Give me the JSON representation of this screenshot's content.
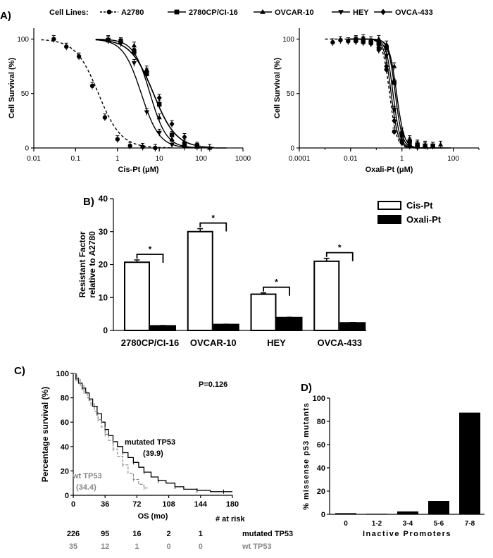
{
  "figure": {
    "panel_labels": [
      "A)",
      "B)",
      "C)",
      "D)"
    ]
  },
  "chart_data": [
    {
      "panel": "A-left",
      "type": "line",
      "title": "",
      "xlabel": "Cis-Pt (μM)",
      "ylabel": "Cell Survival (%)",
      "xscale": "log",
      "xlim": [
        0.01,
        1000
      ],
      "ylim": [
        0,
        110
      ],
      "xticks": [
        "0.01",
        "0.1",
        "1",
        "10",
        "100",
        "1000"
      ],
      "yticks": [
        "0",
        "50",
        "100"
      ],
      "legend_title": "Cell Lines:",
      "series": [
        {
          "name": "A2780",
          "marker": "circle",
          "dashed": true,
          "ic50": 0.35,
          "hill": 1.6,
          "x": [
            0.03,
            0.06,
            0.12,
            0.25,
            0.5,
            1.0,
            2.0,
            4.0,
            8.0
          ],
          "y": [
            100,
            93,
            84,
            57,
            28,
            8,
            2,
            1,
            0
          ]
        },
        {
          "name": "2780CP/CI-16",
          "marker": "square",
          "dashed": false,
          "ic50": 7.2,
          "hill": 1.6,
          "x": [
            0.6,
            1.2,
            2.5,
            5,
            10,
            20,
            40,
            80
          ],
          "y": [
            99,
            98,
            88,
            68,
            40,
            12,
            4,
            2
          ]
        },
        {
          "name": "OVCAR-10",
          "marker": "triangle-up",
          "dashed": false,
          "ic50": 6.0,
          "hill": 2.2,
          "x": [
            0.6,
            1.2,
            2.5,
            5,
            10,
            20,
            40,
            80,
            160
          ],
          "y": [
            100,
            98,
            94,
            72,
            28,
            8,
            2,
            1,
            0
          ]
        },
        {
          "name": "HEY",
          "marker": "triangle-down",
          "dashed": false,
          "ic50": 3.7,
          "hill": 2.0,
          "x": [
            0.6,
            1.2,
            2.5,
            5,
            10,
            20,
            40
          ],
          "y": [
            99,
            96,
            78,
            33,
            14,
            3,
            1
          ]
        },
        {
          "name": "OVCA-433",
          "marker": "diamond",
          "dashed": false,
          "ic50": 7.3,
          "hill": 1.6,
          "x": [
            0.6,
            1.2,
            2.5,
            5,
            10,
            20,
            40
          ],
          "y": [
            99,
            97,
            90,
            70,
            46,
            22,
            10
          ]
        }
      ]
    },
    {
      "panel": "A-right",
      "type": "line",
      "title": "",
      "xlabel": "Oxali-Pt (μM)",
      "ylabel": "Cell Survival (%)",
      "xscale": "log",
      "xlim": [
        0.0001,
        1000
      ],
      "ylim": [
        0,
        110
      ],
      "xticks": [
        "0.0001",
        "0.01",
        "1",
        "100"
      ],
      "yticks": [
        "0",
        "50",
        "100"
      ],
      "series": [
        {
          "name": "A2780",
          "marker": "circle",
          "dashed": true,
          "ic50": 0.33,
          "hill": 3.2,
          "x": [
            0.002,
            0.004,
            0.008,
            0.016,
            0.031,
            0.062,
            0.125,
            0.25,
            0.5,
            1,
            2,
            4
          ],
          "y": [
            97,
            99,
            98,
            98,
            97,
            96,
            92,
            72,
            15,
            5,
            2,
            1
          ]
        },
        {
          "name": "2780CP/CI-16",
          "marker": "square",
          "dashed": false,
          "ic50": 0.55,
          "hill": 3.2,
          "x": [
            0.016,
            0.031,
            0.062,
            0.125,
            0.25,
            0.5,
            1,
            2,
            4,
            8,
            16
          ],
          "y": [
            99,
            98,
            97,
            96,
            92,
            60,
            12,
            6,
            3,
            2,
            2
          ]
        },
        {
          "name": "OVCAR-10",
          "marker": "triangle-up",
          "dashed": false,
          "ic50": 0.62,
          "hill": 3.0,
          "x": [
            0.016,
            0.031,
            0.062,
            0.125,
            0.25,
            0.5,
            1,
            2,
            4,
            8,
            16,
            32
          ],
          "y": [
            100,
            101,
            99,
            100,
            95,
            75,
            15,
            8,
            4,
            3,
            2,
            3
          ]
        },
        {
          "name": "HEY",
          "marker": "triangle-down",
          "dashed": false,
          "ic50": 0.45,
          "hill": 3.2,
          "x": [
            0.016,
            0.031,
            0.062,
            0.125,
            0.25,
            0.5,
            1,
            2,
            4
          ],
          "y": [
            99,
            98,
            96,
            94,
            85,
            35,
            6,
            2,
            1
          ]
        },
        {
          "name": "OVCA-433",
          "marker": "diamond",
          "dashed": false,
          "ic50": 0.38,
          "hill": 3.2,
          "x": [
            0.016,
            0.031,
            0.062,
            0.125,
            0.25,
            0.5,
            1,
            2,
            4
          ],
          "y": [
            98,
            99,
            97,
            90,
            75,
            25,
            5,
            2,
            1
          ]
        }
      ]
    },
    {
      "panel": "B",
      "type": "bar",
      "title": "",
      "xlabel": "",
      "ylabel": "Resistant Factor relative to A2780",
      "ylim": [
        0,
        40
      ],
      "yticks": [
        "0",
        "10",
        "20",
        "30",
        "40"
      ],
      "categories": [
        "2780CP/CI-16",
        "OVCAR-10",
        "HEY",
        "OVCA-433"
      ],
      "series": [
        {
          "name": "Cis-Pt",
          "fill": "#ffffff",
          "values": [
            20.7,
            30.0,
            11.0,
            21.0
          ],
          "errors": [
            0.7,
            0.9,
            0.4,
            0.9
          ]
        },
        {
          "name": "Oxali-Pt",
          "fill": "#000000",
          "values": [
            1.4,
            1.8,
            3.9,
            2.3
          ],
          "errors": [
            0.1,
            0.1,
            0.1,
            0.1
          ]
        }
      ],
      "significance": [
        "*",
        "*",
        "*",
        "*"
      ]
    },
    {
      "panel": "C",
      "type": "line",
      "title": "",
      "xlabel": "OS (mo)",
      "ylabel": "Percentage survival (%)",
      "xlim": [
        0,
        180
      ],
      "ylim": [
        0,
        100
      ],
      "xticks": [
        "0",
        "36",
        "72",
        "108",
        "144",
        "180"
      ],
      "yticks": [
        "0",
        "20",
        "40",
        "60",
        "80",
        "100"
      ],
      "p_value": "P=0.126",
      "series": [
        {
          "name": "mutated TP53",
          "median_label": "mutated TP53",
          "median_value": "(39.9)",
          "color": "#000000",
          "x": [
            0,
            3,
            6,
            10,
            14,
            18,
            22,
            27,
            32,
            36,
            40,
            45,
            50,
            56,
            62,
            68,
            74,
            80,
            88,
            96,
            105,
            115,
            125,
            140,
            155,
            170,
            180
          ],
          "y": [
            100,
            96,
            92,
            88,
            84,
            79,
            73,
            67,
            60,
            54,
            49,
            44,
            40,
            35,
            31,
            27,
            23,
            19,
            15,
            12,
            10,
            7,
            5,
            4,
            3,
            3,
            3
          ]
        },
        {
          "name": "wt TP53",
          "median_label": "wt TP53",
          "median_value": "(34.4)",
          "color": "#888888",
          "x": [
            0,
            4,
            8,
            12,
            16,
            20,
            24,
            28,
            32,
            36,
            40,
            45,
            50,
            56,
            62,
            68,
            74,
            80,
            85
          ],
          "y": [
            100,
            95,
            90,
            85,
            80,
            75,
            69,
            62,
            56,
            50,
            45,
            38,
            32,
            25,
            18,
            13,
            9,
            6,
            6
          ]
        }
      ],
      "risk_table": {
        "header": "# at risk",
        "rows": [
          {
            "label": "mutated TP53",
            "values": [
              "226",
              "95",
              "16",
              "2",
              "1"
            ]
          },
          {
            "label": "wt TP53",
            "values": [
              "35",
              "12",
              "1",
              "0",
              "0"
            ]
          }
        ]
      }
    },
    {
      "panel": "D",
      "type": "bar",
      "title": "",
      "xlabel": "Inactive Promoters",
      "ylabel": "% missense p53 mutants",
      "ylim": [
        0,
        100
      ],
      "yticks": [
        "0",
        "20",
        "40",
        "60",
        "80",
        "100"
      ],
      "categories": [
        "0",
        "1-2",
        "3-4",
        "5-6",
        "7-8"
      ],
      "values": [
        1,
        0.5,
        2.5,
        11.5,
        87.5
      ]
    }
  ]
}
